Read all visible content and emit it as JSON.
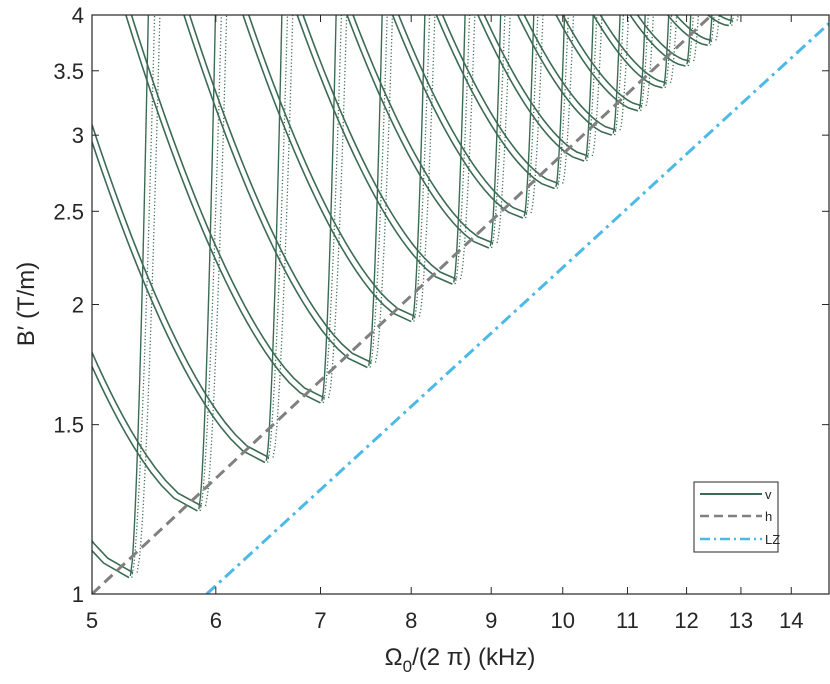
{
  "chart_data": {
    "type": "line",
    "xlabel": "Ω0/(2 π) (kHz)",
    "xlabel_main": "Ω",
    "xlabel_sub": "0",
    "xlabel_rest": "/(2 π) (kHz)",
    "ylabel": "B′ (T/m)",
    "xscale": "log",
    "yscale": "log",
    "xlim": [
      5,
      14.8
    ],
    "ylim": [
      1,
      4
    ],
    "x_ticks": [
      "5",
      "6",
      "7",
      "8",
      "9",
      "10",
      "11",
      "12",
      "13",
      "14"
    ],
    "y_ticks": [
      "1",
      "1.5",
      "2",
      "2.5",
      "3",
      "3.5",
      "4"
    ],
    "legend": {
      "placement": "lower-right",
      "entries": [
        {
          "label": "v",
          "color": "#3c6b55",
          "style": "solid"
        },
        {
          "label": "h",
          "color": "#808080",
          "style": "dashed"
        },
        {
          "label": "LZ",
          "color": "#4db9e6",
          "style": "dash-dot"
        }
      ]
    },
    "series": [
      {
        "name": "h",
        "color": "#808080",
        "style": "dashed",
        "points": [
          [
            5.0,
            1.0
          ],
          [
            12.45,
            4.0
          ]
        ]
      },
      {
        "name": "LZ",
        "color": "#4db9e6",
        "style": "dash-dot",
        "points": [
          [
            5.92,
            1.0
          ],
          [
            14.8,
            3.92
          ]
        ]
      },
      {
        "name": "v",
        "color": "#3c6b55",
        "style": "solid",
        "description_free": true,
        "resonance_minima": [
          [
            5.28,
            1.04
          ],
          [
            5.84,
            1.22
          ],
          [
            6.45,
            1.37
          ],
          [
            7.0,
            1.58
          ],
          [
            7.5,
            1.72
          ],
          [
            8.0,
            1.92
          ],
          [
            8.5,
            2.1
          ],
          [
            8.97,
            2.29
          ],
          [
            9.43,
            2.46
          ],
          [
            9.88,
            2.64
          ],
          [
            10.32,
            2.82
          ],
          [
            10.75,
            3.0
          ],
          [
            11.17,
            3.18
          ],
          [
            11.58,
            3.36
          ],
          [
            11.98,
            3.54
          ],
          [
            12.38,
            3.72
          ],
          [
            12.77,
            3.9
          ]
        ]
      }
    ]
  }
}
